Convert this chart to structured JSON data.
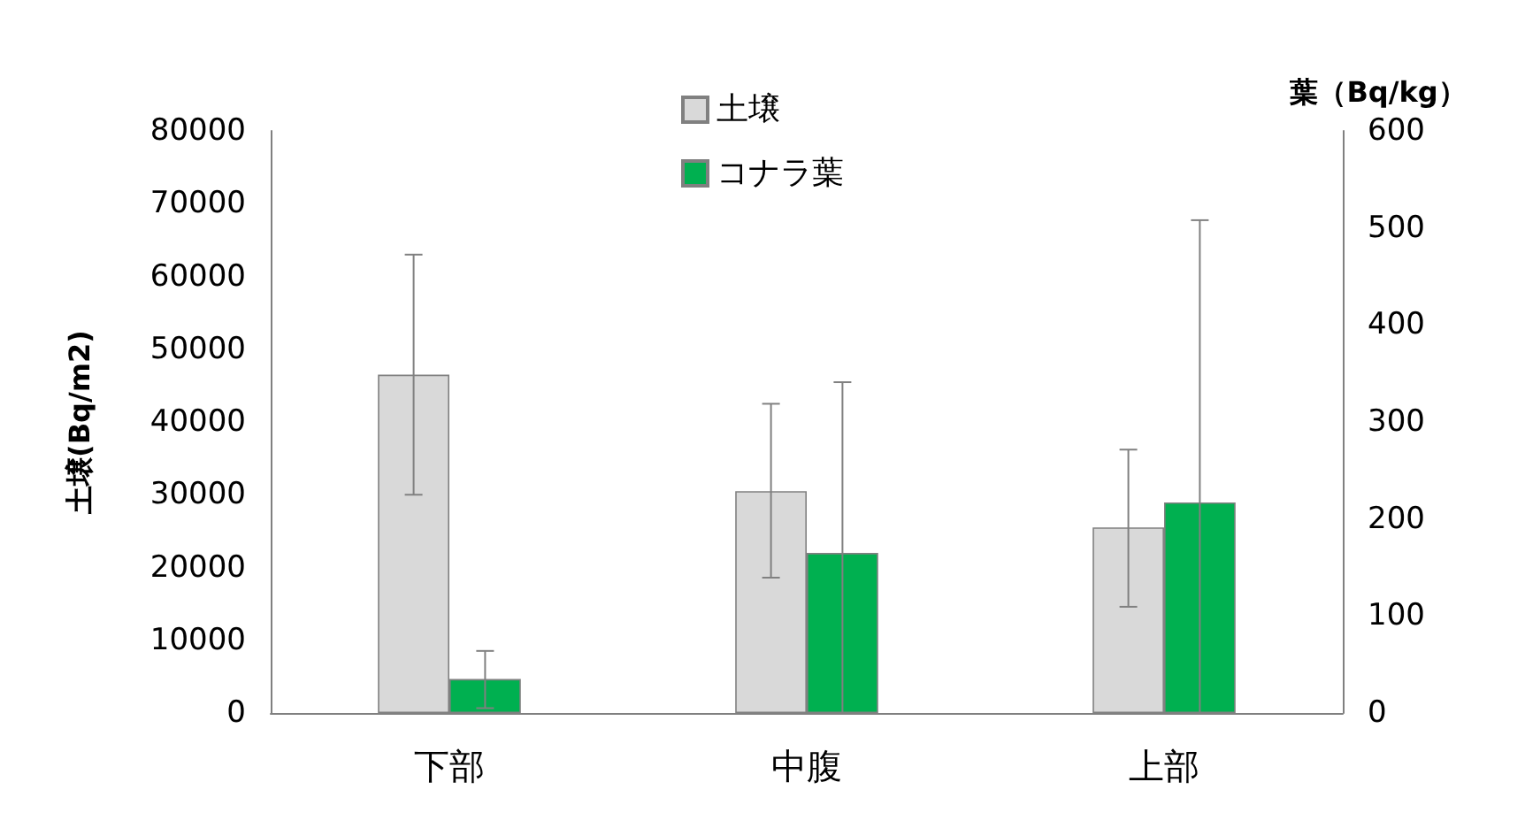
{
  "chart_data": {
    "type": "bar",
    "categories": [
      "下部",
      "中腹",
      "上部"
    ],
    "ylabel": "土壌(Bq/m2)",
    "y2label": "葉（Bq/kg）",
    "ylim": [
      0,
      80000
    ],
    "yticks": [
      0,
      10000,
      20000,
      30000,
      40000,
      50000,
      60000,
      70000,
      80000
    ],
    "y2lim": [
      0,
      600
    ],
    "y2ticks": [
      0,
      100,
      200,
      300,
      400,
      500,
      600
    ],
    "series": [
      {
        "name": "土壌",
        "color": "#d9d9d9",
        "values": [
          46500,
          30500,
          25500
        ],
        "errors": [
          [
            30000,
            63000
          ],
          [
            18600,
            42500
          ],
          [
            14600,
            36200
          ]
        ]
      },
      {
        "name": "コナラ葉",
        "color": "#00b050",
        "axis": "y2",
        "values": [
          35,
          165,
          217
        ],
        "errors": [
          [
            5,
            64
          ],
          [
            0,
            341
          ],
          [
            0,
            508
          ]
        ]
      }
    ],
    "legend": "top",
    "grid": false
  }
}
